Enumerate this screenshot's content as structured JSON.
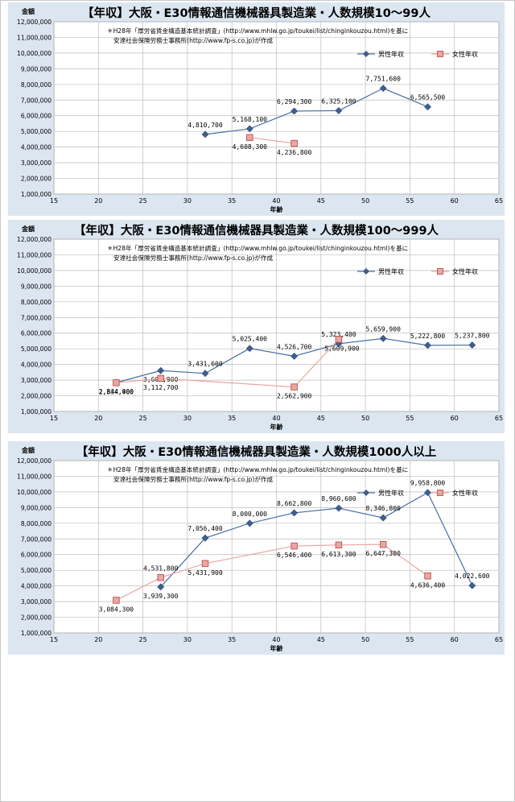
{
  "chart_data": [
    {
      "type": "line",
      "title": "【年収】大阪・E30情報通信機械器具製造業・人数規模10～99人",
      "xlabel": "年齢",
      "ylabel": "金額",
      "note_line1": "＊H28年「厚労省賃金構造基本統計調査」(http://www.mhlw.go.jp/toukei/list/chinginkouzou.html)を基に",
      "note_line2": "安達社会保険労務士事務所(http://www.fp-s.co.jp)が作成",
      "xlim": [
        15,
        65
      ],
      "ylim": [
        1000000,
        12000000
      ],
      "xticks": [
        "15",
        "20",
        "25",
        "30",
        "35",
        "40",
        "45",
        "50",
        "55",
        "60",
        "65"
      ],
      "yticks": [
        "1,000,000",
        "2,000,000",
        "3,000,000",
        "4,000,000",
        "5,000,000",
        "6,000,000",
        "7,000,000",
        "8,000,000",
        "9,000,000",
        "10,000,000",
        "11,000,000",
        "12,000,000"
      ],
      "grid": true,
      "legend_position": "top-right",
      "series": [
        {
          "name": "男性年収",
          "color": "#4a6fa3",
          "marker": "diamond",
          "points": [
            {
              "x": 32,
              "y": 4810700,
              "label": "4,810,700"
            },
            {
              "x": 37,
              "y": 5168100,
              "label": "5,168,100"
            },
            {
              "x": 42,
              "y": 6294300,
              "label": "6,294,300"
            },
            {
              "x": 47,
              "y": 6325100,
              "label": "6,325,100"
            },
            {
              "x": 52,
              "y": 7751600,
              "label": "7,751,600"
            },
            {
              "x": 57,
              "y": 6565500,
              "label": "6,565,500"
            }
          ]
        },
        {
          "name": "女性年収",
          "color": "#e8a7a2",
          "marker": "square",
          "points": [
            {
              "x": 37,
              "y": 4608300,
              "label": "4,608,300"
            },
            {
              "x": 42,
              "y": 4236800,
              "label": "4,236,800"
            }
          ]
        }
      ]
    },
    {
      "type": "line",
      "title": "【年収】大阪・E30情報通信機械器具製造業・人数規模100～999人",
      "xlabel": "年齢",
      "ylabel": "金額",
      "note_line1": "＊H28年「厚労省賃金構造基本統計調査」(http://www.mhlw.go.jp/toukei/list/chinginkouzou.html)を基に",
      "note_line2": "安達社会保険労務士事務所(http://www.fp-s.co.jp)が作成",
      "xlim": [
        15,
        65
      ],
      "ylim": [
        1000000,
        12000000
      ],
      "xticks": [
        "15",
        "20",
        "25",
        "30",
        "35",
        "40",
        "45",
        "50",
        "55",
        "60",
        "65"
      ],
      "yticks": [
        "1,000,000",
        "2,000,000",
        "3,000,000",
        "4,000,000",
        "5,000,000",
        "6,000,000",
        "7,000,000",
        "8,000,000",
        "9,000,000",
        "10,000,000",
        "11,000,000",
        "12,000,000"
      ],
      "grid": true,
      "legend_position": "top-right",
      "series": [
        {
          "name": "男性年収",
          "color": "#4a6fa3",
          "marker": "diamond",
          "points": [
            {
              "x": 22,
              "y": 2844900,
              "label": "2,844,900"
            },
            {
              "x": 27,
              "y": 3608900,
              "label": "3,608,900"
            },
            {
              "x": 32,
              "y": 3431600,
              "label": "3,431,600"
            },
            {
              "x": 37,
              "y": 5025400,
              "label": "5,025,400"
            },
            {
              "x": 42,
              "y": 4526700,
              "label": "4,526,700"
            },
            {
              "x": 47,
              "y": 5323400,
              "label": "5,323,400"
            },
            {
              "x": 52,
              "y": 5659900,
              "label": "5,659,900"
            },
            {
              "x": 57,
              "y": 5222800,
              "label": "5,222,800"
            },
            {
              "x": 62,
              "y": 5237800,
              "label": "5,237,800"
            }
          ]
        },
        {
          "name": "女性年収",
          "color": "#e8a7a2",
          "marker": "square",
          "points": [
            {
              "x": 22,
              "y": 2834400,
              "label": "2,834,400"
            },
            {
              "x": 27,
              "y": 3112700,
              "label": "3,112,700"
            },
            {
              "x": 42,
              "y": 2562900,
              "label": "2,562,900"
            },
            {
              "x": 47,
              "y": 5609900,
              "label": "5,609,900"
            }
          ]
        }
      ]
    },
    {
      "type": "line",
      "title": "【年収】大阪・E30情報通信機械器具製造業・人数規模1000人以上",
      "xlabel": "年齢",
      "ylabel": "金額",
      "note_line1": "＊H28年「厚労省賃金構造基本統計調査」(http://www.mhlw.go.jp/toukei/list/chinginkouzou.html)を基に",
      "note_line2": "安達社会保険労務士事務所(http://www.fp-s.co.jp)が作成",
      "xlim": [
        15,
        65
      ],
      "ylim": [
        1000000,
        12000000
      ],
      "xticks": [
        "15",
        "20",
        "25",
        "30",
        "35",
        "40",
        "45",
        "50",
        "55",
        "60",
        "65"
      ],
      "yticks": [
        "1,000,000",
        "2,000,000",
        "3,000,000",
        "4,000,000",
        "5,000,000",
        "6,000,000",
        "7,000,000",
        "8,000,000",
        "9,000,000",
        "10,000,000",
        "11,000,000",
        "12,000,000"
      ],
      "grid": true,
      "legend_position": "top-right",
      "series": [
        {
          "name": "男性年収",
          "color": "#4a6fa3",
          "marker": "diamond",
          "points": [
            {
              "x": 27,
              "y": 3939300,
              "label": "3,939,300"
            },
            {
              "x": 32,
              "y": 7056400,
              "label": "7,056,400"
            },
            {
              "x": 37,
              "y": 8000000,
              "label": "8,000,000"
            },
            {
              "x": 42,
              "y": 8662800,
              "label": "8,662,800"
            },
            {
              "x": 47,
              "y": 8960600,
              "label": "8,960,600"
            },
            {
              "x": 52,
              "y": 8346800,
              "label": "8,346,800"
            },
            {
              "x": 57,
              "y": 9958800,
              "label": "9,958,800"
            },
            {
              "x": 62,
              "y": 4022600,
              "label": "4,022,600"
            }
          ]
        },
        {
          "name": "女性年収",
          "color": "#e8a7a2",
          "marker": "square",
          "points": [
            {
              "x": 22,
              "y": 3084300,
              "label": "3,084,300"
            },
            {
              "x": 27,
              "y": 4531800,
              "label": "4,531,800"
            },
            {
              "x": 32,
              "y": 5431900,
              "label": "5,431,900"
            },
            {
              "x": 42,
              "y": 6546400,
              "label": "6,546,400"
            },
            {
              "x": 47,
              "y": 6613300,
              "label": "6,613,300"
            },
            {
              "x": 52,
              "y": 6647300,
              "label": "6,647,300"
            },
            {
              "x": 57,
              "y": 4636400,
              "label": "4,636,400"
            }
          ]
        }
      ]
    }
  ]
}
